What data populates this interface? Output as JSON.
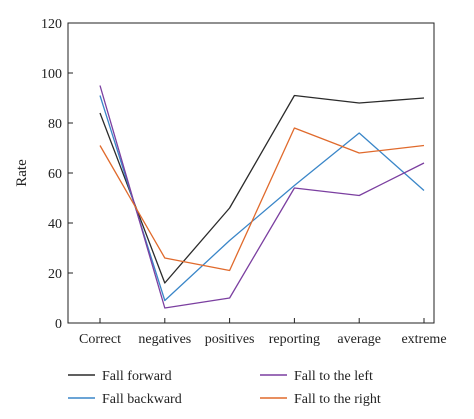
{
  "chart_data": {
    "type": "line",
    "ylabel": "Rate",
    "xlabel": "",
    "ylim": [
      0,
      120
    ],
    "yticks": [
      0,
      20,
      40,
      60,
      80,
      100,
      120
    ],
    "categories": [
      "Correct",
      "negatives",
      "positives",
      "reporting",
      "average",
      "extreme"
    ],
    "grid": false,
    "legend_position": "bottom",
    "series": [
      {
        "name": "Fall forward",
        "color": "#2b2b2b",
        "values": [
          84,
          16,
          46,
          91,
          88,
          90
        ]
      },
      {
        "name": "Fall backward",
        "color": "#3a86c8",
        "values": [
          91,
          9,
          33,
          55,
          76,
          53
        ]
      },
      {
        "name": "Fall to the left",
        "color": "#7b3fa0",
        "values": [
          95,
          6,
          10,
          54,
          51,
          64
        ]
      },
      {
        "name": "Fall to the right",
        "color": "#e06a2c",
        "values": [
          71,
          26,
          21,
          78,
          68,
          71
        ]
      }
    ]
  }
}
